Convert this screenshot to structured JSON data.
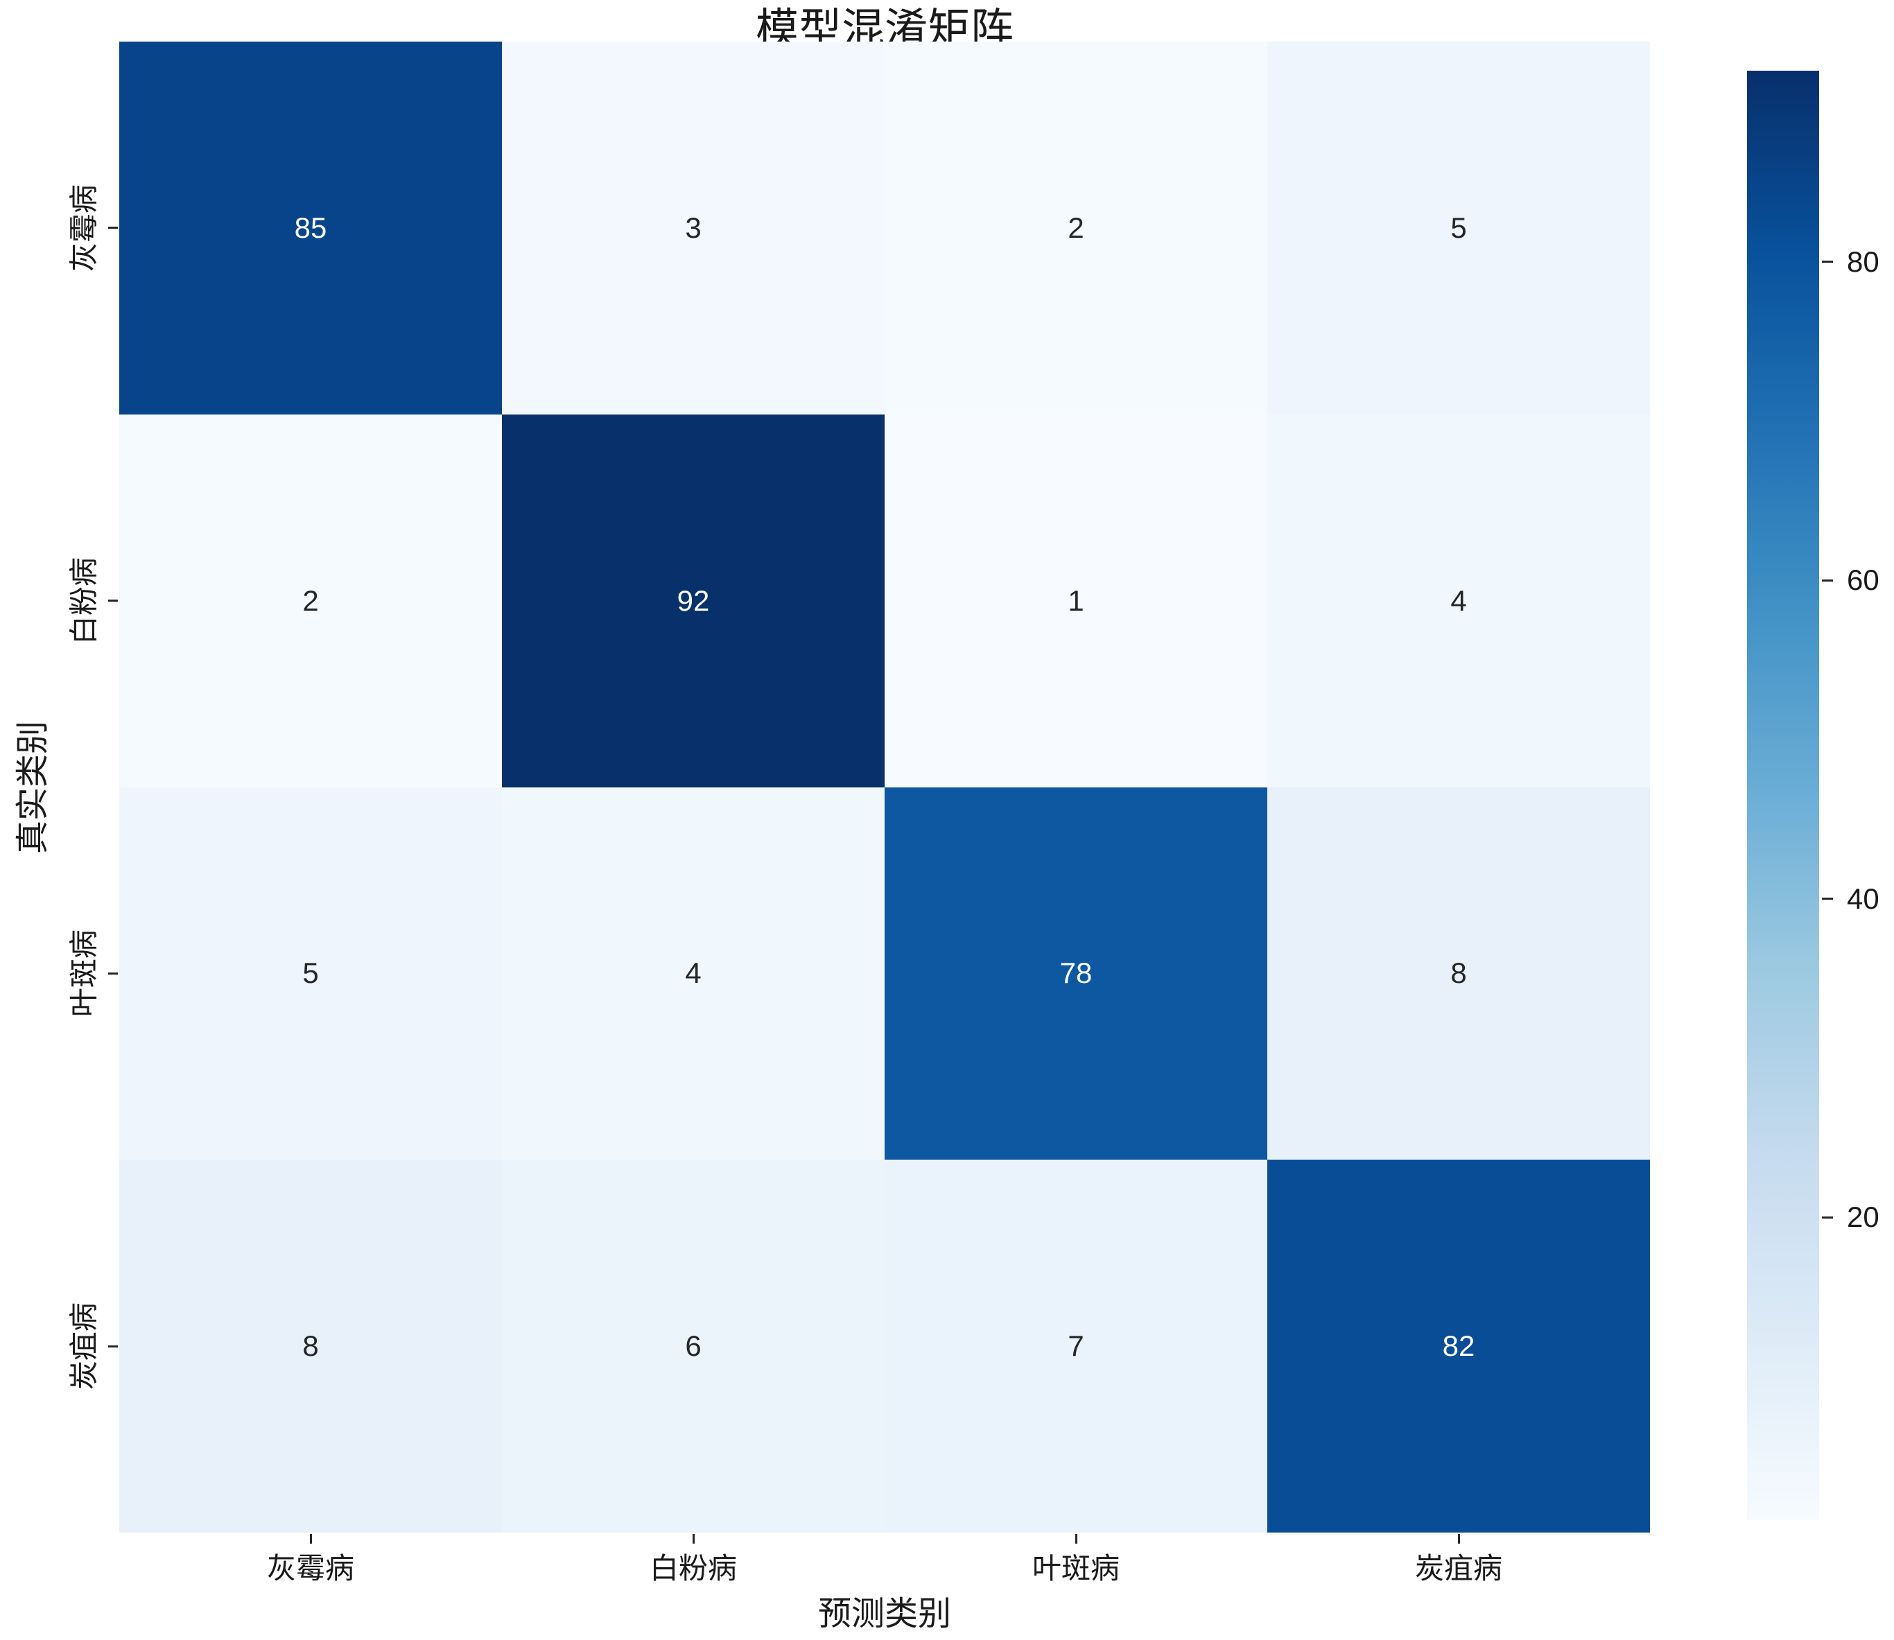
{
  "chart_data": {
    "type": "heatmap",
    "title": "模型混淆矩阵",
    "xlabel": "预测类别",
    "ylabel": "真实类别",
    "x_categories": [
      "灰霉病",
      "白粉病",
      "叶斑病",
      "炭疽病"
    ],
    "y_categories": [
      "灰霉病",
      "白粉病",
      "叶斑病",
      "炭疽病"
    ],
    "matrix": [
      [
        85,
        3,
        2,
        5
      ],
      [
        2,
        92,
        1,
        4
      ],
      [
        5,
        4,
        78,
        8
      ],
      [
        8,
        6,
        7,
        82
      ]
    ],
    "vmin": 1,
    "vmax": 92,
    "colormap": "Blues",
    "colormap_anchors": [
      "#f7fbff",
      "#deebf7",
      "#c6dbef",
      "#9ecae1",
      "#6baed6",
      "#4292c6",
      "#2171b5",
      "#08519c",
      "#08306b"
    ],
    "colorbar_ticks": [
      20,
      40,
      60,
      80
    ],
    "colorbar_position": "right",
    "annotation_text_colors": {
      "on_light": "#262626",
      "on_dark": "#ffffff"
    },
    "grid": false
  }
}
